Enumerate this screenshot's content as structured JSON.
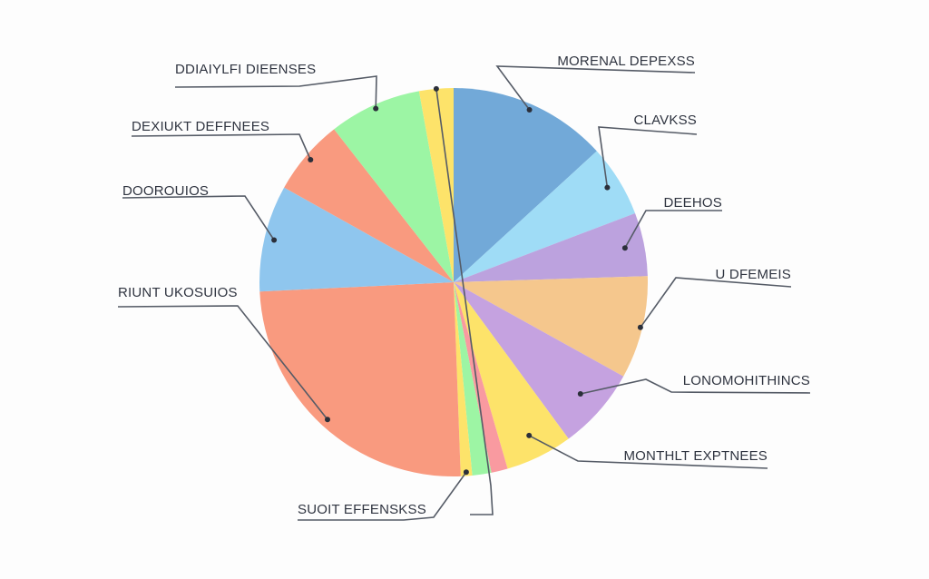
{
  "chart_data": {
    "type": "pie",
    "title": "",
    "start_angle_deg": 0,
    "slices": [
      {
        "label": "MORENAL DEPEXSS",
        "value": 12.5,
        "color": "#72a9d8",
        "show_label": true
      },
      {
        "label": "CLAVKSS",
        "value": 5.7,
        "color": "#9fdcf6",
        "show_label": true
      },
      {
        "label": "DEEHOS",
        "value": 5.0,
        "color": "#bca2de",
        "show_label": true
      },
      {
        "label": "U DFEMEIS",
        "value": 8.1,
        "color": "#f5c78d",
        "show_label": true
      },
      {
        "label": "LONOMOHITHINCS",
        "value": 6.5,
        "color": "#c5a2e0",
        "show_label": true
      },
      {
        "label": "MONTHLT EXPTNEES",
        "value": 5.3,
        "color": "#fde36a",
        "show_label": true
      },
      {
        "label": "",
        "value": 1.3,
        "color": "#f99aa0",
        "show_label": false
      },
      {
        "label": "",
        "value": 1.5,
        "color": "#9df5a4",
        "show_label": false
      },
      {
        "label": "SUOIT EFFENSKSS",
        "value": 0.9,
        "color": "#fde36a",
        "show_label": true
      },
      {
        "label": "RIUNT UKOSUIOS",
        "value": 23.5,
        "color": "#f99a7f",
        "show_label": true
      },
      {
        "label": "DOOROUIOS",
        "value": 8.4,
        "color": "#8fc6ee",
        "show_label": true
      },
      {
        "label": "DEXIUKT DEFFNEES",
        "value": 6.0,
        "color": "#f99a7f",
        "show_label": true
      },
      {
        "label": "DDIAIYLFI DIEENSES",
        "value": 7.3,
        "color": "#9cf5a4",
        "show_label": true
      },
      {
        "label": "",
        "value": 2.7,
        "color": "#fde36a",
        "show_label": false
      }
    ]
  }
}
